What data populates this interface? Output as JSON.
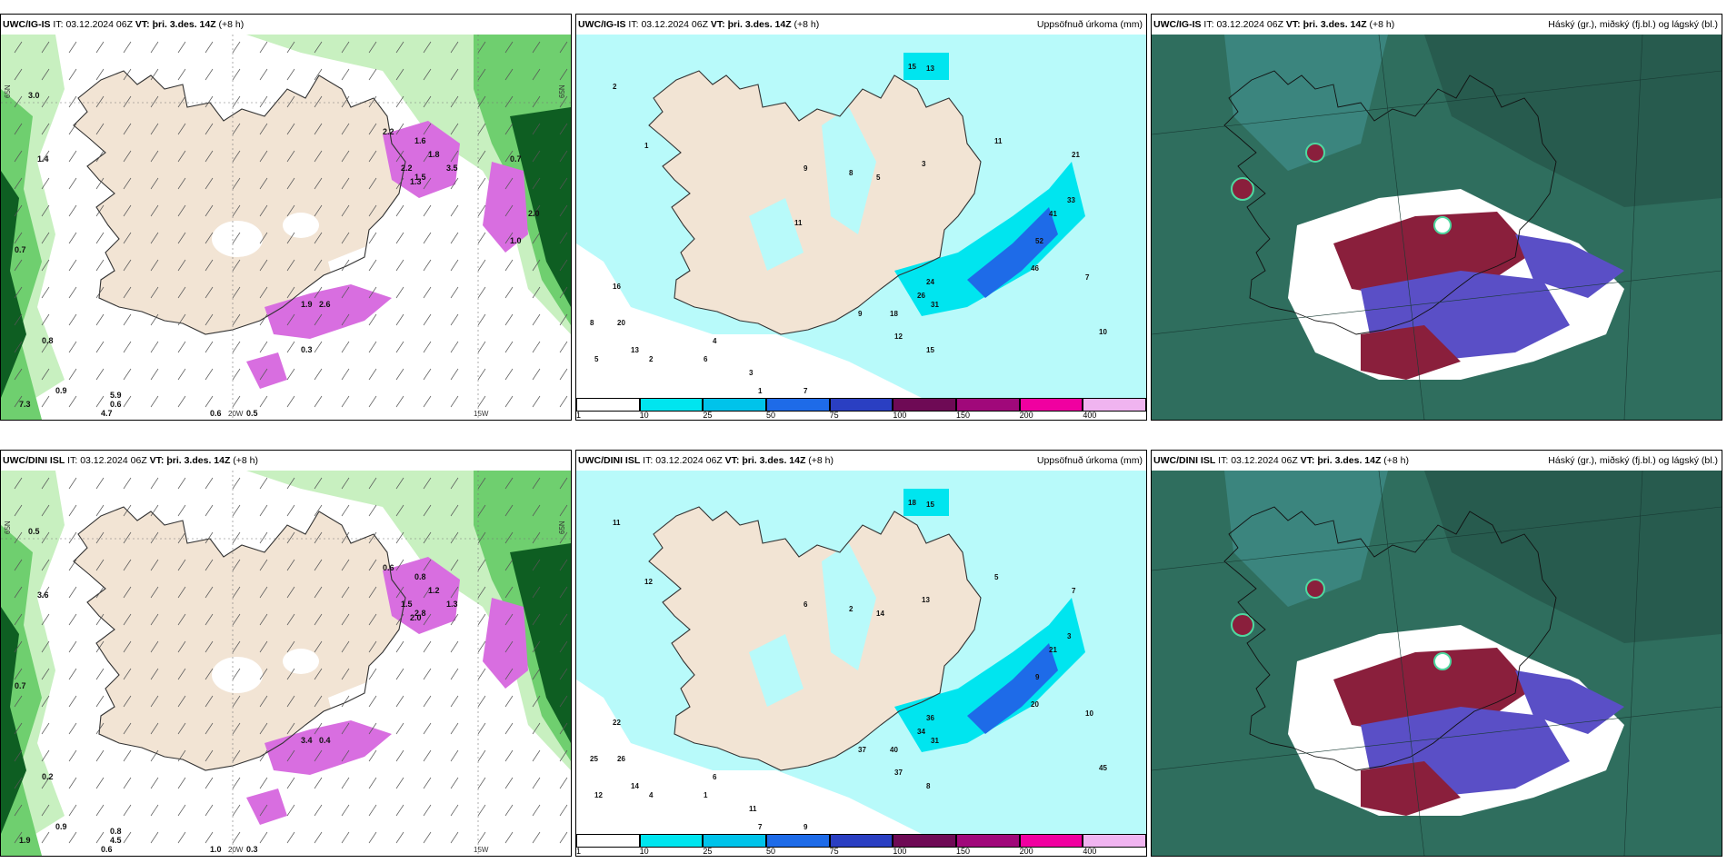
{
  "rows": [
    {
      "model": "UWC/IG-IS",
      "it_label": "IT:",
      "it": "03.12.2024 06Z",
      "vt_label": "VT:",
      "vt": "þri. 3.des. 14Z",
      "lead": "(+8 h)",
      "precip_title": "Uppsöfnuð úrkoma (mm)",
      "cloud_title": "Háský (gr.), miðský (fj.bl.) og lágský (bl.)",
      "lon_labels": [
        "20W",
        "15W"
      ],
      "lat_labels": [
        "65N",
        "65N"
      ],
      "wind_values": [
        "3.0",
        "1.4",
        "2.2",
        "1.6",
        "1.8",
        "2.2",
        "1.5",
        "3.5",
        "1.3",
        "0.7",
        "0.6",
        "0.9",
        "2.6",
        "1.9",
        "0.5",
        "0.6",
        "4.7",
        "5.9",
        "7.3",
        "0.8",
        "0.3",
        "1.0",
        "2.0",
        "0.7"
      ],
      "precip_values": [
        "15",
        "13",
        "2",
        "1",
        "9",
        "8",
        "5",
        "3",
        "11",
        "21",
        "33",
        "41",
        "52",
        "46",
        "24",
        "26",
        "31",
        "18",
        "12",
        "15",
        "7",
        "10",
        "9",
        "16",
        "20",
        "13",
        "8",
        "5",
        "2",
        "6",
        "4",
        "1",
        "3",
        "7",
        "11"
      ]
    },
    {
      "model": "UWC/DINI ISL",
      "it_label": "IT:",
      "it": "03.12.2024 06Z",
      "vt_label": "VT:",
      "vt": "þri. 3.des. 14Z",
      "lead": "(+8 h)",
      "precip_title": "Uppsöfnuð úrkoma (mm)",
      "cloud_title": "Háský (gr.), miðský (fj.bl.) og lágský (bl.)",
      "lon_labels": [
        "20W",
        "15W"
      ],
      "lat_labels": [
        "65N",
        "65N"
      ],
      "wind_values": [
        "0.5",
        "3.6",
        "0.6",
        "0.8",
        "1.2",
        "1.5",
        "2.8",
        "1.3",
        "2.0",
        "0.7",
        "1.0",
        "0.9",
        "0.4",
        "3.4",
        "0.3",
        "4.5",
        "0.6",
        "0.8",
        "1.9",
        "0.2"
      ],
      "precip_values": [
        "18",
        "15",
        "11",
        "12",
        "6",
        "2",
        "14",
        "13",
        "5",
        "7",
        "3",
        "21",
        "9",
        "20",
        "36",
        "34",
        "31",
        "40",
        "37",
        "8",
        "10",
        "45",
        "37",
        "22",
        "26",
        "14",
        "25",
        "12",
        "4",
        "1",
        "6",
        "7",
        "11",
        "9"
      ]
    }
  ],
  "colorbar": {
    "labels": [
      "1",
      "10",
      "25",
      "50",
      "75",
      "100",
      "150",
      "200",
      "400"
    ],
    "colors": [
      "#ffffff",
      "#00e5ef",
      "#00c3ea",
      "#1e6be8",
      "#2a3fc2",
      "#6e0a55",
      "#a0087a",
      "#f000a0",
      "#f0b4f0"
    ]
  },
  "palette": {
    "land": "#f2e4d4",
    "light_green": "#c8f0c0",
    "mid_green": "#6fcf6f",
    "dark_green": "#0e5e22",
    "magenta": "#d86ee0",
    "precip_light": "#b8fafa",
    "precip_cyan": "#00e5ef",
    "cloud_teal": "#2f6e5e",
    "cloud_red": "#8a1f3c",
    "cloud_blue": "#5a4fc6"
  }
}
